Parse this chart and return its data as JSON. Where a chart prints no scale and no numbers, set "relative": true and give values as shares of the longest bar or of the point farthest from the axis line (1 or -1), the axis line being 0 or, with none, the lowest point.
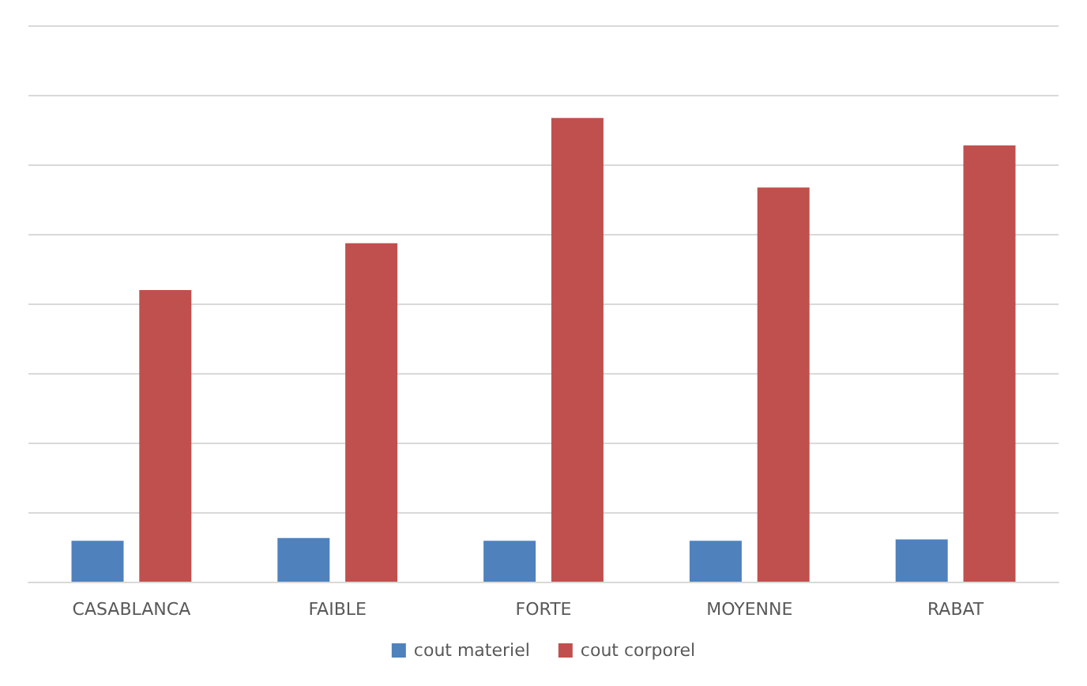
{
  "chart_data": {
    "type": "bar",
    "relative": true,
    "categories": [
      "CASABLANCA",
      "FAIBLE",
      "FORTE",
      "MOYENNE",
      "RABAT"
    ],
    "series": [
      {
        "name": "cout materiel",
        "color": "#4f81bd",
        "values": [
          0.088,
          0.094,
          0.088,
          0.088,
          0.091
        ]
      },
      {
        "name": "cout corporel",
        "color": "#c0504d",
        "values": [
          0.629,
          0.73,
          1,
          0.85,
          0.941
        ]
      }
    ],
    "grid": "y",
    "legend": "bottom"
  }
}
